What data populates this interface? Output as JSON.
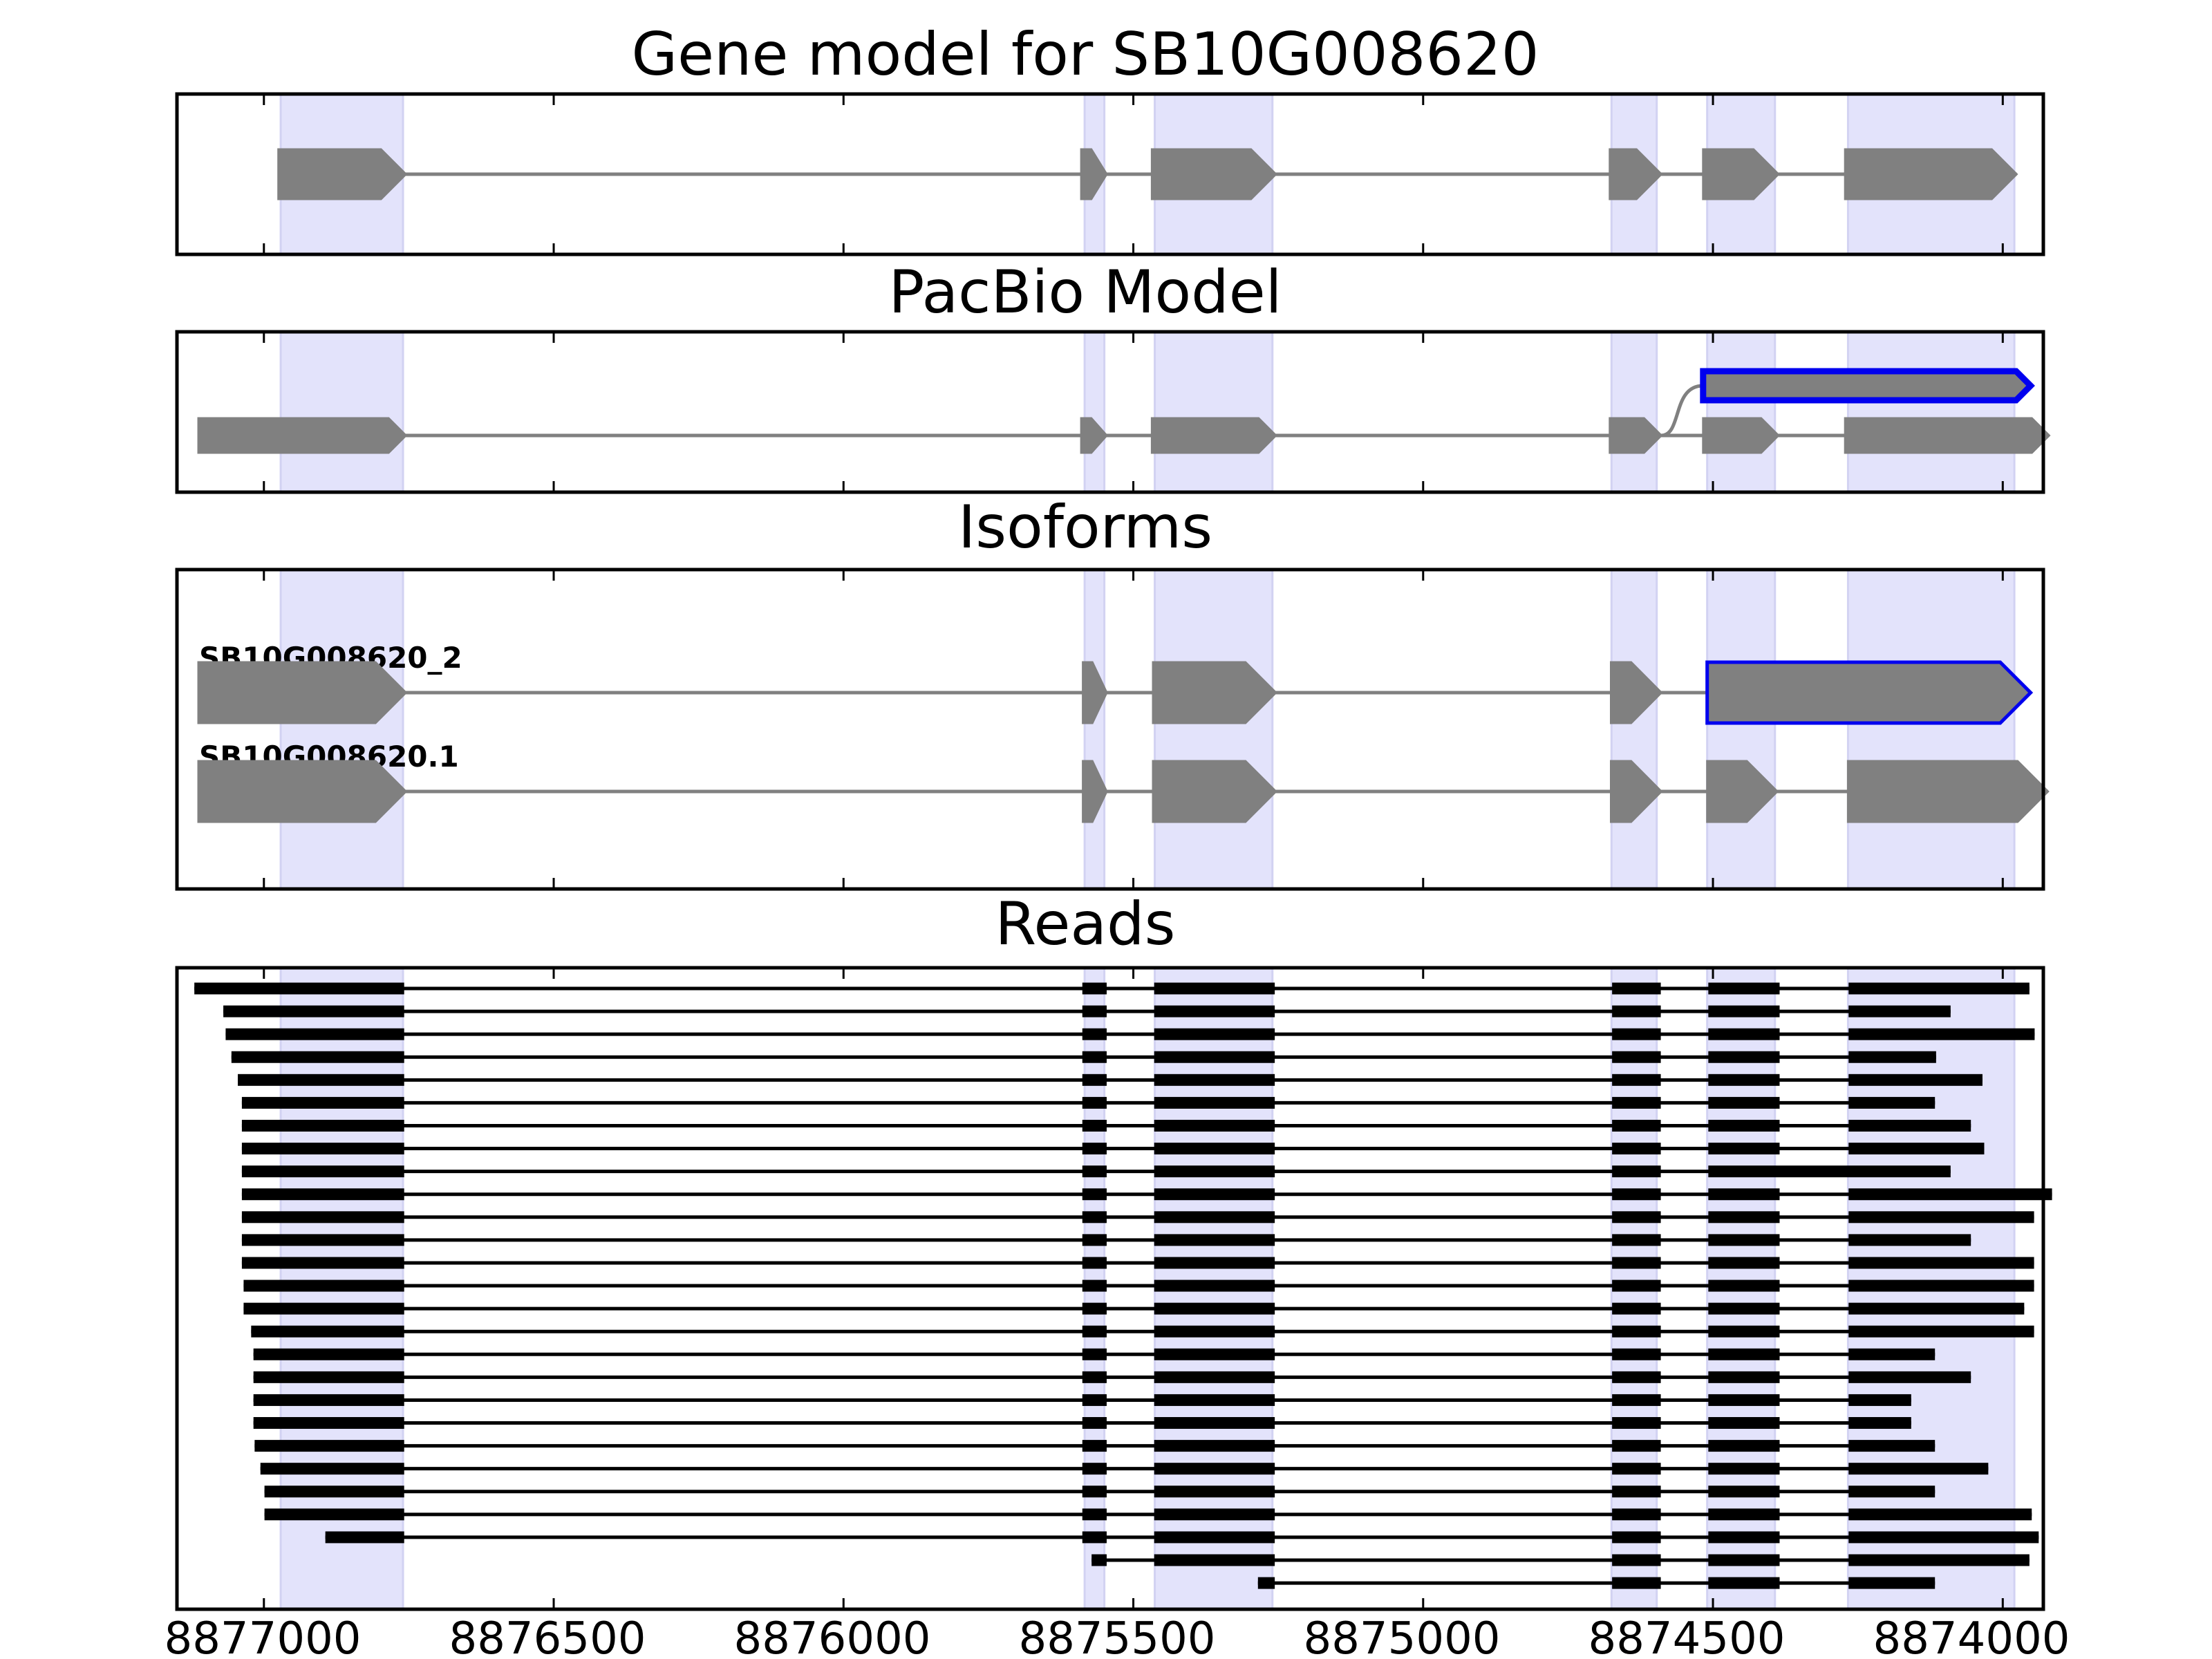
{
  "chart_data": {
    "type": "gene-structure",
    "colors": {
      "exon_fill": "#808080",
      "exon_stroke": "#808080",
      "intron": "#808080",
      "highlight_stroke": "#0000ee",
      "exon_band": "#e3e3fb",
      "read": "#000000",
      "frame": "#000000"
    },
    "x_axis": {
      "range": [
        8877150,
        8873930
      ],
      "reversed": true,
      "ticks": [
        8877000,
        8876500,
        8876000,
        8875500,
        8875000,
        8874500,
        8874000
      ],
      "tick_labels": [
        "8877000",
        "8876500",
        "8876000",
        "8875500",
        "8875000",
        "8874500",
        "8874000"
      ]
    },
    "exon_bands": [
      [
        8876971,
        8876760
      ],
      [
        8875584,
        8875550
      ],
      [
        8875463,
        8875260
      ],
      [
        8874675,
        8874597
      ],
      [
        8874510,
        8874393
      ],
      [
        8874267,
        8873980
      ]
    ],
    "panels": [
      {
        "title": "Gene model for SB10G008620",
        "rows": [
          {
            "exons": [
              [
                8876975,
                8876755
              ],
              [
                8875590,
                8875546
              ],
              [
                8875468,
                8875254
              ],
              [
                8874678,
                8874589
              ],
              [
                8874517,
                8874387
              ],
              [
                8874272,
                8873976
              ]
            ]
          }
        ]
      },
      {
        "title": "PacBio Model",
        "rows": [
          {
            "exons": [
              [
                8874517,
                8873952
              ]
            ],
            "highlight": true,
            "connect_from": [
              8874678,
              8874589
            ]
          },
          {
            "exons": [
              [
                8877113,
                8876755
              ],
              [
                8875590,
                8875546
              ],
              [
                8875468,
                8875254
              ],
              [
                8874678,
                8874589
              ],
              [
                8874517,
                8874387
              ],
              [
                8874272,
                8873920
              ]
            ]
          }
        ]
      },
      {
        "title": "Isoforms",
        "rows": [
          {
            "label": "SB10G008620_2",
            "exons": [
              [
                8877113,
                8876755
              ],
              [
                8875587,
                8875546
              ],
              [
                8875466,
                8875254
              ],
              [
                8874676,
                8874589
              ],
              [
                8874510,
                8873952
              ]
            ],
            "highlight_exon": 4
          },
          {
            "label": "SB10G008620.1",
            "exons": [
              [
                8877113,
                8876755
              ],
              [
                8875587,
                8875546
              ],
              [
                8875466,
                8875254
              ],
              [
                8874676,
                8874589
              ],
              [
                8874510,
                8874389
              ],
              [
                8874267,
                8873922
              ]
            ]
          }
        ]
      },
      {
        "title": "Reads",
        "reads": [
          [
            [
              8877120,
              8876758
            ],
            [
              8875588,
              8875546
            ],
            [
              8875464,
              8875256
            ],
            [
              8874674,
              8874590
            ],
            [
              8874508,
              8874385
            ],
            [
              8874266,
              8873954
            ]
          ],
          [
            [
              8877070,
              8876758
            ],
            [
              8875588,
              8875546
            ],
            [
              8875464,
              8875256
            ],
            [
              8874674,
              8874590
            ],
            [
              8874508,
              8874385
            ],
            [
              8874266,
              8874090
            ]
          ],
          [
            [
              8877066,
              8876758
            ],
            [
              8875588,
              8875546
            ],
            [
              8875464,
              8875256
            ],
            [
              8874674,
              8874590
            ],
            [
              8874508,
              8874385
            ],
            [
              8874266,
              8873945
            ]
          ],
          [
            [
              8877056,
              8876758
            ],
            [
              8875588,
              8875546
            ],
            [
              8875464,
              8875256
            ],
            [
              8874674,
              8874590
            ],
            [
              8874508,
              8874385
            ],
            [
              8874266,
              8874115
            ]
          ],
          [
            [
              8877045,
              8876758
            ],
            [
              8875588,
              8875546
            ],
            [
              8875464,
              8875256
            ],
            [
              8874674,
              8874590
            ],
            [
              8874508,
              8874385
            ],
            [
              8874266,
              8874035
            ]
          ],
          [
            [
              8877038,
              8876758
            ],
            [
              8875588,
              8875546
            ],
            [
              8875464,
              8875256
            ],
            [
              8874674,
              8874590
            ],
            [
              8874508,
              8874385
            ],
            [
              8874266,
              8874117
            ]
          ],
          [
            [
              8877038,
              8876758
            ],
            [
              8875588,
              8875546
            ],
            [
              8875464,
              8875256
            ],
            [
              8874674,
              8874590
            ],
            [
              8874508,
              8874385
            ],
            [
              8874266,
              8874055
            ]
          ],
          [
            [
              8877038,
              8876758
            ],
            [
              8875588,
              8875546
            ],
            [
              8875464,
              8875256
            ],
            [
              8874674,
              8874590
            ],
            [
              8874508,
              8874385
            ],
            [
              8874266,
              8874032
            ]
          ],
          [
            [
              8877038,
              8876758
            ],
            [
              8875588,
              8875546
            ],
            [
              8875464,
              8875256
            ],
            [
              8874674,
              8874590
            ],
            [
              8874508,
              8874090
            ]
          ],
          [
            [
              8877038,
              8876758
            ],
            [
              8875588,
              8875546
            ],
            [
              8875464,
              8875256
            ],
            [
              8874674,
              8874590
            ],
            [
              8874508,
              8874385
            ],
            [
              8874266,
              8873915
            ]
          ],
          [
            [
              8877038,
              8876758
            ],
            [
              8875588,
              8875546
            ],
            [
              8875464,
              8875256
            ],
            [
              8874674,
              8874590
            ],
            [
              8874508,
              8874385
            ],
            [
              8874266,
              8873946
            ]
          ],
          [
            [
              8877038,
              8876758
            ],
            [
              8875588,
              8875546
            ],
            [
              8875464,
              8875256
            ],
            [
              8874674,
              8874590
            ],
            [
              8874508,
              8874385
            ],
            [
              8874266,
              8874055
            ]
          ],
          [
            [
              8877038,
              8876758
            ],
            [
              8875588,
              8875546
            ],
            [
              8875464,
              8875256
            ],
            [
              8874674,
              8874590
            ],
            [
              8874508,
              8874385
            ],
            [
              8874266,
              8873946
            ]
          ],
          [
            [
              8877035,
              8876758
            ],
            [
              8875588,
              8875546
            ],
            [
              8875464,
              8875256
            ],
            [
              8874674,
              8874590
            ],
            [
              8874508,
              8874385
            ],
            [
              8874266,
              8873946
            ]
          ],
          [
            [
              8877035,
              8876758
            ],
            [
              8875588,
              8875546
            ],
            [
              8875464,
              8875256
            ],
            [
              8874674,
              8874590
            ],
            [
              8874508,
              8874385
            ],
            [
              8874266,
              8873963
            ]
          ],
          [
            [
              8877022,
              8876758
            ],
            [
              8875588,
              8875546
            ],
            [
              8875464,
              8875256
            ],
            [
              8874674,
              8874590
            ],
            [
              8874508,
              8874385
            ],
            [
              8874266,
              8873946
            ]
          ],
          [
            [
              8877018,
              8876758
            ],
            [
              8875588,
              8875546
            ],
            [
              8875464,
              8875256
            ],
            [
              8874674,
              8874590
            ],
            [
              8874508,
              8874385
            ],
            [
              8874266,
              8874117
            ]
          ],
          [
            [
              8877018,
              8876758
            ],
            [
              8875588,
              8875546
            ],
            [
              8875464,
              8875256
            ],
            [
              8874674,
              8874590
            ],
            [
              8874508,
              8874385
            ],
            [
              8874266,
              8874055
            ]
          ],
          [
            [
              8877018,
              8876758
            ],
            [
              8875588,
              8875546
            ],
            [
              8875464,
              8875256
            ],
            [
              8874674,
              8874590
            ],
            [
              8874508,
              8874385
            ],
            [
              8874266,
              8874158
            ]
          ],
          [
            [
              8877018,
              8876758
            ],
            [
              8875588,
              8875546
            ],
            [
              8875464,
              8875256
            ],
            [
              8874674,
              8874590
            ],
            [
              8874508,
              8874385
            ],
            [
              8874266,
              8874158
            ]
          ],
          [
            [
              8877016,
              8876758
            ],
            [
              8875588,
              8875546
            ],
            [
              8875464,
              8875256
            ],
            [
              8874674,
              8874590
            ],
            [
              8874508,
              8874385
            ],
            [
              8874266,
              8874117
            ]
          ],
          [
            [
              8877006,
              8876758
            ],
            [
              8875588,
              8875546
            ],
            [
              8875464,
              8875256
            ],
            [
              8874674,
              8874590
            ],
            [
              8874508,
              8874385
            ],
            [
              8874266,
              8874025
            ]
          ],
          [
            [
              8876999,
              8876758
            ],
            [
              8875588,
              8875546
            ],
            [
              8875464,
              8875256
            ],
            [
              8874674,
              8874590
            ],
            [
              8874508,
              8874385
            ],
            [
              8874266,
              8874117
            ]
          ],
          [
            [
              8876999,
              8876758
            ],
            [
              8875588,
              8875546
            ],
            [
              8875464,
              8875256
            ],
            [
              8874674,
              8874590
            ],
            [
              8874508,
              8874385
            ],
            [
              8874266,
              8873950
            ]
          ],
          [
            [
              8876894,
              8876758
            ],
            [
              8875588,
              8875546
            ],
            [
              8875464,
              8875256
            ],
            [
              8874674,
              8874590
            ],
            [
              8874508,
              8874385
            ],
            [
              8874266,
              8873938
            ]
          ],
          [
            [
              8875572,
              8875546
            ],
            [
              8875464,
              8875256
            ],
            [
              8874674,
              8874590
            ],
            [
              8874508,
              8874385
            ],
            [
              8874266,
              8873954
            ]
          ],
          [
            [
              8875285,
              8875256
            ],
            [
              8874674,
              8874590
            ],
            [
              8874508,
              8874385
            ],
            [
              8874266,
              8874117
            ]
          ]
        ]
      }
    ]
  }
}
